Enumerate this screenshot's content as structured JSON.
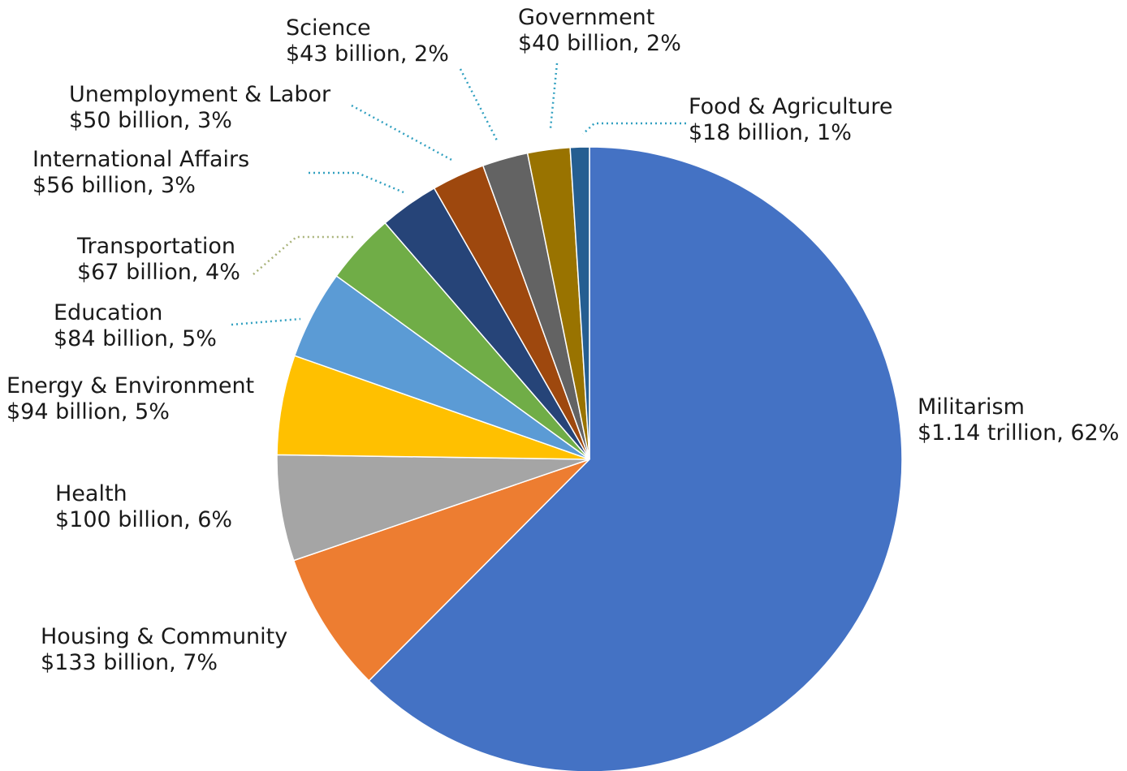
{
  "chart_data": {
    "type": "pie",
    "categories": [
      "Militarism",
      "Housing & Community",
      "Health",
      "Energy & Environment",
      "Education",
      "Transportation",
      "International Affairs",
      "Unemployment & Labor",
      "Science",
      "Government",
      "Food & Agriculture"
    ],
    "values": [
      1140,
      133,
      100,
      94,
      84,
      67,
      56,
      50,
      43,
      40,
      18
    ],
    "value_labels": [
      "$1.14 trillion, 62%",
      "$133 billion, 7%",
      "$100 billion, 6%",
      "$94 billion, 5%",
      "$84 billion, 5%",
      "$67 billion, 4%",
      "$56 billion, 3%",
      "$50 billion, 3%",
      "$43 billion, 2%",
      "$40 billion, 2%",
      "$18 billion, 1%"
    ],
    "colors": [
      "#4472c4",
      "#ed7d31",
      "#a5a5a5",
      "#ffc000",
      "#5b9bd5",
      "#70ad47",
      "#264478",
      "#9e480e",
      "#636363",
      "#997300",
      "#255e91"
    ]
  }
}
